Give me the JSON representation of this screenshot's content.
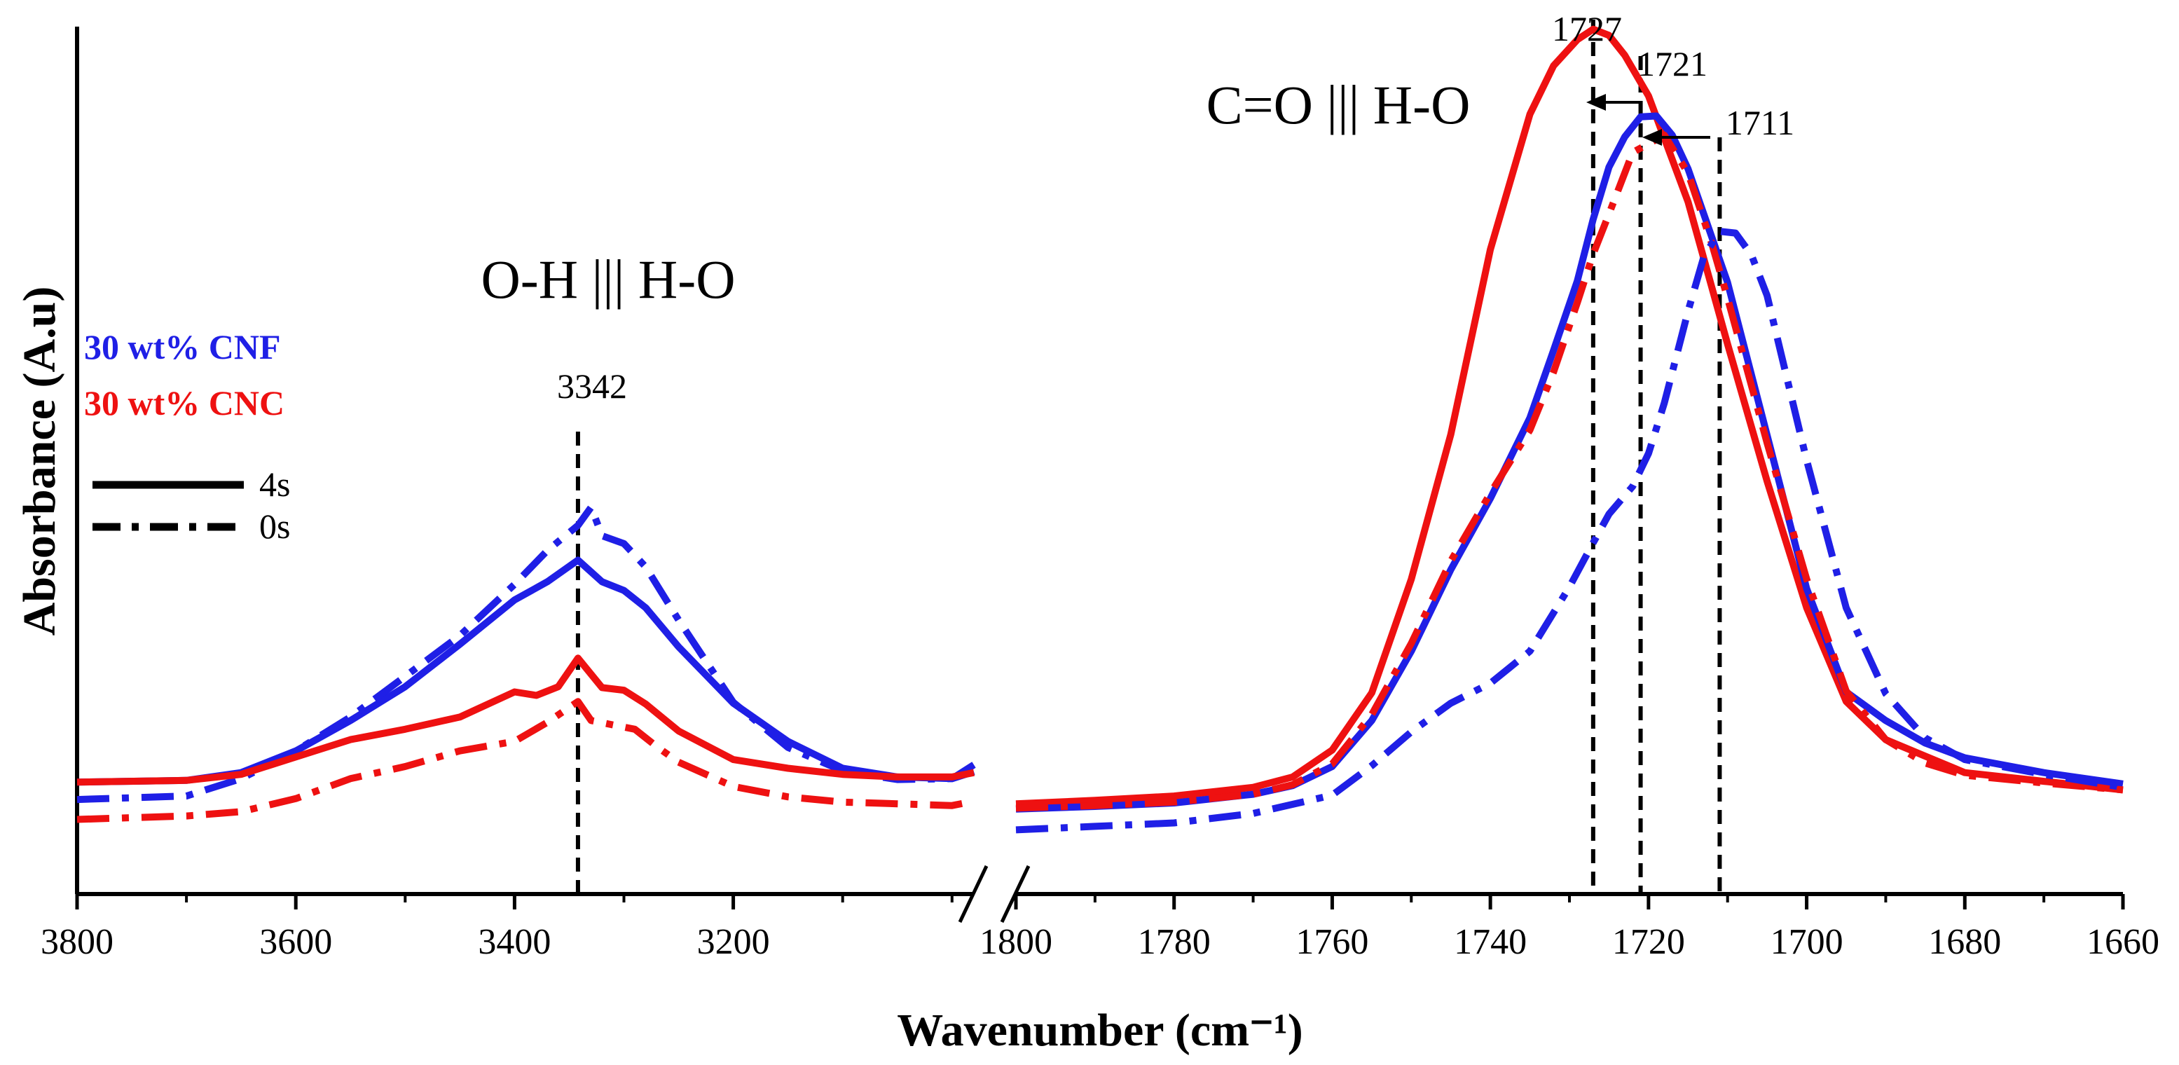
{
  "chart_data": {
    "type": "line",
    "title": "",
    "xlabel": "Wavenumber (cm⁻¹)",
    "ylabel": "Absorbance (A.u)",
    "x_axis_reversed": true,
    "broken_axis": true,
    "ylim": [
      0,
      1.0
    ],
    "panels": [
      {
        "name": "left",
        "xlim": [
          3800,
          2980
        ],
        "ticks": [
          3800,
          3600,
          3400,
          3200
        ]
      },
      {
        "name": "right",
        "xlim": [
          1800,
          1660
        ],
        "ticks": [
          1800,
          1780,
          1760,
          1740,
          1720,
          1700,
          1680,
          1660
        ]
      }
    ],
    "series": [
      {
        "name": "30 wt% CNF 4s",
        "color": "#1f1fe6",
        "style": "solid",
        "panel": "left",
        "x": [
          3800,
          3700,
          3650,
          3600,
          3550,
          3500,
          3450,
          3400,
          3370,
          3342,
          3320,
          3300,
          3280,
          3250,
          3200,
          3150,
          3100,
          3050,
          3000,
          2980
        ],
        "y": [
          0.129,
          0.131,
          0.14,
          0.165,
          0.2,
          0.239,
          0.288,
          0.339,
          0.36,
          0.385,
          0.36,
          0.35,
          0.33,
          0.285,
          0.22,
          0.176,
          0.145,
          0.135,
          0.133,
          0.149
        ]
      },
      {
        "name": "30 wt% CNF 0s",
        "color": "#1f1fe6",
        "style": "dashdot",
        "panel": "left",
        "x": [
          3800,
          3700,
          3650,
          3600,
          3550,
          3500,
          3450,
          3400,
          3370,
          3342,
          3330,
          3320,
          3300,
          3280,
          3250,
          3200,
          3150,
          3100,
          3050,
          3000,
          2980
        ],
        "y": [
          0.109,
          0.113,
          0.133,
          0.165,
          0.204,
          0.251,
          0.298,
          0.357,
          0.396,
          0.425,
          0.446,
          0.413,
          0.404,
          0.377,
          0.316,
          0.221,
          0.169,
          0.142,
          0.132,
          0.133,
          0.141
        ]
      },
      {
        "name": "30 wt% CNC 4s",
        "color": "#ee1111",
        "style": "solid",
        "panel": "left",
        "x": [
          3800,
          3700,
          3650,
          3600,
          3550,
          3500,
          3450,
          3400,
          3380,
          3360,
          3342,
          3320,
          3300,
          3280,
          3250,
          3200,
          3150,
          3100,
          3050,
          3000,
          2980
        ],
        "y": [
          0.129,
          0.131,
          0.138,
          0.158,
          0.178,
          0.19,
          0.204,
          0.233,
          0.229,
          0.239,
          0.272,
          0.238,
          0.235,
          0.219,
          0.188,
          0.155,
          0.145,
          0.138,
          0.135,
          0.135,
          0.14
        ]
      },
      {
        "name": "30 wt% CNC 0s",
        "color": "#ee1111",
        "style": "dashdot",
        "panel": "left",
        "x": [
          3800,
          3700,
          3650,
          3600,
          3550,
          3500,
          3450,
          3400,
          3370,
          3342,
          3330,
          3310,
          3290,
          3270,
          3250,
          3200,
          3150,
          3100,
          3050,
          3000,
          2980
        ],
        "y": [
          0.086,
          0.09,
          0.095,
          0.11,
          0.133,
          0.147,
          0.165,
          0.176,
          0.198,
          0.222,
          0.2,
          0.195,
          0.19,
          0.17,
          0.152,
          0.124,
          0.112,
          0.106,
          0.104,
          0.102,
          0.107
        ]
      },
      {
        "name": "30 wt% CNC 4s",
        "color": "#ee1111",
        "style": "solid",
        "panel": "right",
        "x": [
          1800,
          1790,
          1780,
          1770,
          1765,
          1760,
          1755,
          1750,
          1745,
          1740,
          1735,
          1732,
          1729,
          1727,
          1725,
          1723,
          1720,
          1715,
          1710,
          1705,
          1700,
          1695,
          1690,
          1685,
          1680,
          1670,
          1660
        ],
        "y": [
          0.104,
          0.108,
          0.113,
          0.123,
          0.135,
          0.166,
          0.232,
          0.363,
          0.53,
          0.743,
          0.899,
          0.955,
          0.985,
          0.997,
          0.99,
          0.967,
          0.92,
          0.798,
          0.634,
          0.476,
          0.33,
          0.222,
          0.178,
          0.159,
          0.14,
          0.13,
          0.12
        ]
      },
      {
        "name": "30 wt% CNF 4s",
        "color": "#1f1fe6",
        "style": "solid",
        "panel": "right",
        "x": [
          1800,
          1790,
          1780,
          1770,
          1765,
          1760,
          1755,
          1750,
          1745,
          1740,
          1735,
          1732,
          1729,
          1727,
          1725,
          1723,
          1721,
          1719,
          1717,
          1715,
          1710,
          1705,
          1700,
          1695,
          1690,
          1685,
          1680,
          1670,
          1660
        ],
        "y": [
          0.098,
          0.101,
          0.105,
          0.115,
          0.125,
          0.147,
          0.2,
          0.28,
          0.374,
          0.456,
          0.549,
          0.627,
          0.707,
          0.778,
          0.838,
          0.873,
          0.896,
          0.897,
          0.875,
          0.836,
          0.705,
          0.529,
          0.352,
          0.233,
          0.2,
          0.174,
          0.157,
          0.14,
          0.127
        ]
      },
      {
        "name": "30 wt% CNC 0s",
        "color": "#ee1111",
        "style": "dashdot",
        "panel": "right",
        "x": [
          1800,
          1790,
          1780,
          1770,
          1765,
          1760,
          1755,
          1750,
          1745,
          1740,
          1735,
          1732,
          1729,
          1727,
          1725,
          1722,
          1718,
          1715,
          1712,
          1710,
          1705,
          1700,
          1695,
          1690,
          1685,
          1680,
          1670,
          1660
        ],
        "y": [
          0.099,
          0.102,
          0.106,
          0.115,
          0.126,
          0.15,
          0.207,
          0.289,
          0.384,
          0.462,
          0.535,
          0.602,
          0.682,
          0.738,
          0.784,
          0.855,
          0.875,
          0.831,
          0.75,
          0.687,
          0.52,
          0.363,
          0.234,
          0.178,
          0.151,
          0.137,
          0.128,
          0.12
        ]
      },
      {
        "name": "30 wt% CNF 0s",
        "color": "#1f1fe6",
        "style": "dashdot",
        "panel": "right",
        "x": [
          1800,
          1790,
          1780,
          1770,
          1760,
          1755,
          1750,
          1745,
          1740,
          1735,
          1730,
          1727,
          1725,
          1722,
          1720,
          1718,
          1715,
          1713,
          1711,
          1709,
          1707,
          1705,
          1700,
          1695,
          1690,
          1685,
          1680,
          1670,
          1660
        ],
        "y": [
          0.074,
          0.078,
          0.082,
          0.093,
          0.114,
          0.148,
          0.187,
          0.22,
          0.243,
          0.28,
          0.354,
          0.405,
          0.438,
          0.47,
          0.508,
          0.566,
          0.672,
          0.735,
          0.764,
          0.762,
          0.737,
          0.69,
          0.5,
          0.33,
          0.231,
          0.18,
          0.155,
          0.138,
          0.123
        ]
      }
    ],
    "reference_lines": [
      {
        "panel": "left",
        "x": 3342,
        "label": "3342"
      },
      {
        "panel": "right",
        "x": 1727,
        "label": "1727"
      },
      {
        "panel": "right",
        "x": 1721,
        "label": "1721"
      },
      {
        "panel": "right",
        "x": 1711,
        "label": "1711"
      }
    ],
    "annotations": [
      {
        "text": "O-H ||| H-O",
        "panel": "left"
      },
      {
        "text": "C=O ||| H-O",
        "panel": "right"
      }
    ],
    "legend": {
      "placement": "top-left",
      "series_labels": [
        {
          "text": "30 wt% CNF",
          "color": "#1f1fe6"
        },
        {
          "text": "30 wt% CNC",
          "color": "#ee1111"
        }
      ],
      "line_styles": [
        {
          "text": "4s",
          "style": "solid"
        },
        {
          "text": "0s",
          "style": "dashdot"
        }
      ]
    }
  }
}
